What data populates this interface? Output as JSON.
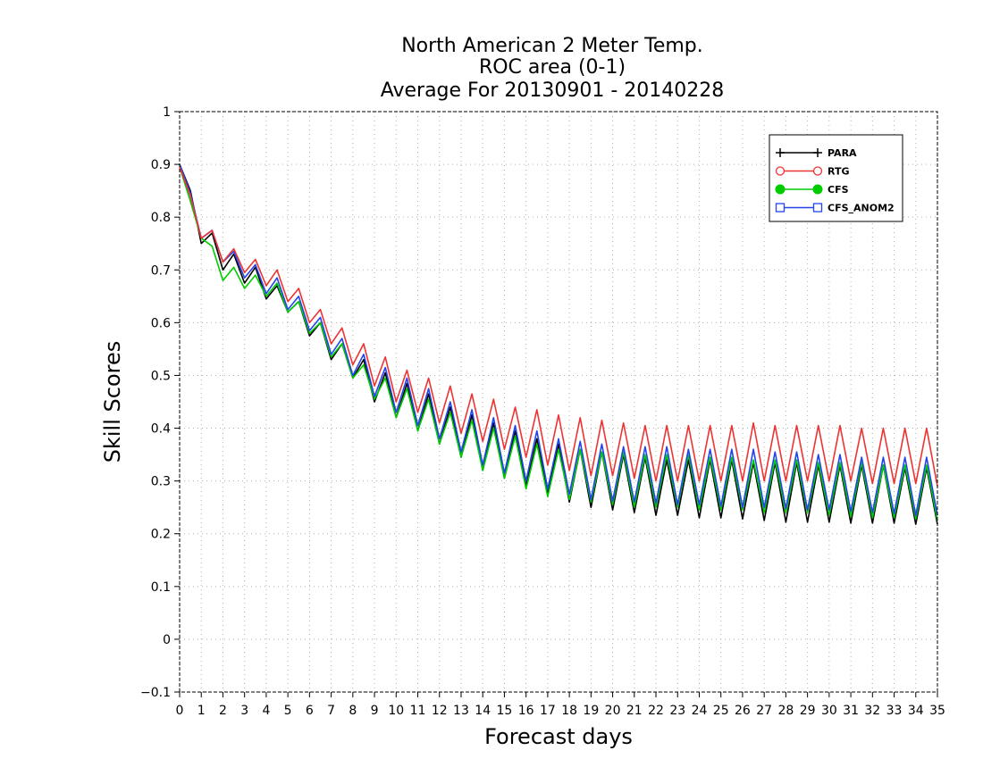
{
  "chart_data": {
    "type": "line",
    "title": [
      "North American 2 Meter Temp.",
      "ROC area (0-1)",
      "Average For 20130901 - 20140228"
    ],
    "xlabel": "Forecast days",
    "ylabel": "Skill Scores",
    "xlim": [
      0,
      35
    ],
    "ylim": [
      -0.1,
      1
    ],
    "x_ticks": [
      "0",
      "1",
      "2",
      "3",
      "4",
      "5",
      "6",
      "7",
      "8",
      "9",
      "10",
      "11",
      "12",
      "13",
      "14",
      "15",
      "16",
      "17",
      "18",
      "19",
      "20",
      "21",
      "22",
      "23",
      "24",
      "25",
      "26",
      "27",
      "28",
      "29",
      "30",
      "31",
      "32",
      "33",
      "34",
      "35"
    ],
    "y_ticks": [
      "−0.1",
      "0",
      "0.1",
      "0.2",
      "0.3",
      "0.4",
      "0.5",
      "0.6",
      "0.7",
      "0.8",
      "0.9",
      "1"
    ],
    "y_tick_values": [
      -0.1,
      0,
      0.1,
      0.2,
      0.3,
      0.4,
      0.5,
      0.6,
      0.7,
      0.8,
      0.9,
      1.0
    ],
    "grid": true,
    "legend_position": "top-right",
    "x_step": 0.5,
    "series": [
      {
        "name": "PARA",
        "color": "#000000",
        "marker": "plus",
        "values": [
          0.9,
          0.85,
          0.75,
          0.77,
          0.7,
          0.73,
          0.675,
          0.705,
          0.645,
          0.67,
          0.62,
          0.64,
          0.575,
          0.6,
          0.53,
          0.56,
          0.495,
          0.53,
          0.45,
          0.505,
          0.42,
          0.485,
          0.395,
          0.465,
          0.37,
          0.44,
          0.345,
          0.425,
          0.32,
          0.41,
          0.305,
          0.395,
          0.29,
          0.38,
          0.275,
          0.37,
          0.26,
          0.36,
          0.25,
          0.355,
          0.245,
          0.35,
          0.24,
          0.345,
          0.235,
          0.34,
          0.235,
          0.34,
          0.23,
          0.34,
          0.23,
          0.34,
          0.228,
          0.335,
          0.225,
          0.335,
          0.222,
          0.335,
          0.222,
          0.33,
          0.222,
          0.33,
          0.22,
          0.33,
          0.22,
          0.33,
          0.22,
          0.325,
          0.218,
          0.325,
          0.218
        ]
      },
      {
        "name": "RTG",
        "color": "#ee3333",
        "marker": "circle",
        "values": [
          0.895,
          0.84,
          0.76,
          0.775,
          0.715,
          0.74,
          0.695,
          0.72,
          0.67,
          0.7,
          0.64,
          0.665,
          0.6,
          0.625,
          0.56,
          0.59,
          0.52,
          0.56,
          0.48,
          0.535,
          0.45,
          0.51,
          0.43,
          0.495,
          0.41,
          0.48,
          0.39,
          0.465,
          0.375,
          0.455,
          0.36,
          0.44,
          0.345,
          0.435,
          0.33,
          0.425,
          0.32,
          0.42,
          0.31,
          0.415,
          0.31,
          0.41,
          0.305,
          0.405,
          0.3,
          0.405,
          0.3,
          0.405,
          0.3,
          0.405,
          0.3,
          0.405,
          0.3,
          0.41,
          0.3,
          0.405,
          0.3,
          0.405,
          0.3,
          0.405,
          0.3,
          0.405,
          0.3,
          0.4,
          0.295,
          0.4,
          0.295,
          0.4,
          0.295,
          0.4,
          0.29
        ]
      },
      {
        "name": "CFS",
        "color": "#00cc00",
        "marker": "dot",
        "values": [
          0.895,
          0.83,
          0.76,
          0.745,
          0.68,
          0.705,
          0.665,
          0.69,
          0.65,
          0.675,
          0.62,
          0.64,
          0.58,
          0.6,
          0.535,
          0.56,
          0.495,
          0.52,
          0.455,
          0.495,
          0.42,
          0.475,
          0.395,
          0.455,
          0.37,
          0.43,
          0.345,
          0.415,
          0.32,
          0.4,
          0.305,
          0.385,
          0.285,
          0.37,
          0.27,
          0.36,
          0.265,
          0.36,
          0.26,
          0.355,
          0.255,
          0.355,
          0.25,
          0.35,
          0.25,
          0.35,
          0.25,
          0.35,
          0.245,
          0.345,
          0.245,
          0.345,
          0.245,
          0.34,
          0.24,
          0.34,
          0.24,
          0.34,
          0.24,
          0.335,
          0.235,
          0.335,
          0.232,
          0.335,
          0.23,
          0.33,
          0.23,
          0.33,
          0.228,
          0.33,
          0.225
        ]
      },
      {
        "name": "CFS_ANOM2",
        "color": "#2244ee",
        "marker": "square",
        "values": [
          0.9,
          0.845,
          0.76,
          0.775,
          0.715,
          0.735,
          0.685,
          0.71,
          0.655,
          0.685,
          0.625,
          0.65,
          0.585,
          0.61,
          0.54,
          0.57,
          0.5,
          0.54,
          0.46,
          0.515,
          0.43,
          0.495,
          0.405,
          0.475,
          0.38,
          0.45,
          0.355,
          0.435,
          0.33,
          0.42,
          0.315,
          0.405,
          0.3,
          0.395,
          0.285,
          0.38,
          0.275,
          0.375,
          0.265,
          0.37,
          0.262,
          0.365,
          0.26,
          0.365,
          0.258,
          0.365,
          0.255,
          0.36,
          0.255,
          0.36,
          0.252,
          0.36,
          0.25,
          0.36,
          0.25,
          0.355,
          0.248,
          0.355,
          0.245,
          0.35,
          0.245,
          0.35,
          0.242,
          0.345,
          0.24,
          0.345,
          0.238,
          0.345,
          0.235,
          0.345,
          0.235
        ]
      }
    ]
  }
}
